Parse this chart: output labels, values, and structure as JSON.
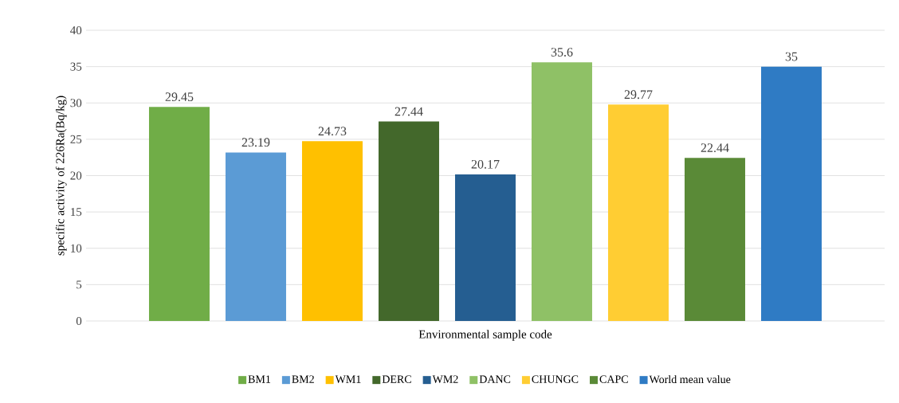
{
  "chart_data": {
    "type": "bar",
    "xlabel": "Environmental sample code",
    "ylabel": "specific activity of  226Ra(Bq/kg)",
    "categories": [
      null
    ],
    "series": [
      {
        "name": "BM1",
        "color": "#70ad47",
        "values": [
          29.45
        ]
      },
      {
        "name": "BM2",
        "color": "#5b9bd5",
        "values": [
          23.19
        ]
      },
      {
        "name": "WM1",
        "color": "#ffc000",
        "values": [
          24.73
        ]
      },
      {
        "name": "DERC",
        "color": "#43682b",
        "values": [
          27.44
        ]
      },
      {
        "name": "WM2",
        "color": "#255e91",
        "values": [
          20.17
        ]
      },
      {
        "name": "DANC",
        "color": "#8fc166",
        "values": [
          35.6
        ]
      },
      {
        "name": "CHUNGC",
        "color": "#ffcd33",
        "values": [
          29.77
        ]
      },
      {
        "name": "CAPC",
        "color": "#5a8a37",
        "values": [
          22.44
        ]
      },
      {
        "name": "World mean value",
        "color": "#2f7bc4",
        "values": [
          35
        ]
      }
    ],
    "ylim": [
      0,
      40
    ],
    "yticks": [
      0,
      5,
      10,
      15,
      20,
      25,
      30,
      35,
      40
    ],
    "grid": "y",
    "legend": "bottom",
    "data_labels": true
  }
}
